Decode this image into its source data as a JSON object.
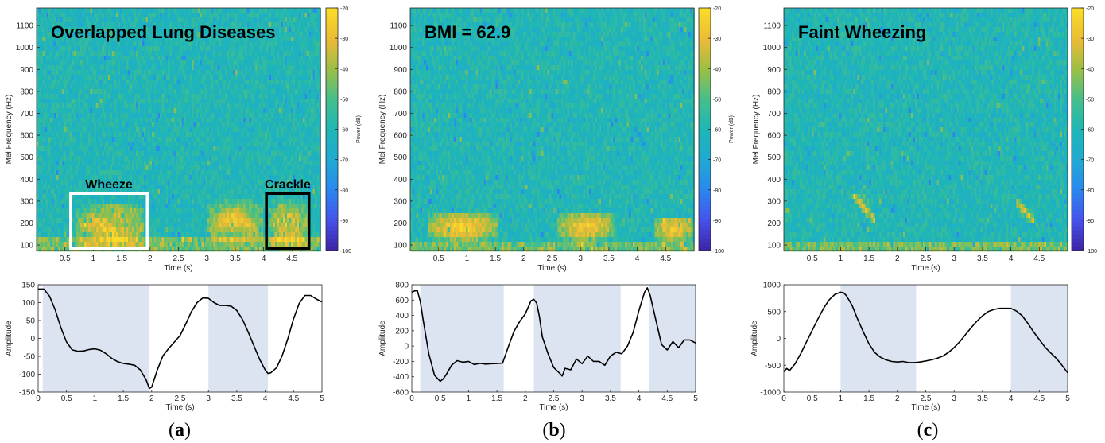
{
  "colors": {
    "shade": "#dde4f1",
    "wave": "#000000",
    "spec_low": "#3e26a8",
    "spec_mid": "#1fb5b7",
    "spec_high": "#fadc28",
    "box_wheeze": "#ffffff",
    "box_crackle": "#000000"
  },
  "colormap": "parula",
  "chart_data": [
    {
      "type": "heatmap",
      "panel": "a",
      "overlay_text": "Overlapped Lung Diseases",
      "xlabel": "Time (s)",
      "ylabel": "Mel Frequency (Hz)",
      "xlim": [
        0,
        5
      ],
      "ylim": [
        75,
        1180
      ],
      "xticks": [
        "0.5",
        "1",
        "1.5",
        "2",
        "2.5",
        "3",
        "3.5",
        "4",
        "4.5"
      ],
      "yticks": [
        "100",
        "200",
        "300",
        "400",
        "500",
        "600",
        "700",
        "800",
        "900",
        "1000",
        "1100"
      ],
      "colorbar": {
        "label": "Power (dB)",
        "range": [
          -100,
          -20
        ],
        "ticks": [
          "-20",
          "-30",
          "-40",
          "-50",
          "-60",
          "-70",
          "-80",
          "-90",
          "-100"
        ]
      },
      "baseline_band": [
        75,
        130
      ],
      "hot_regions": [
        {
          "t0": 0.7,
          "t1": 1.9,
          "f0": 90,
          "f1": 290,
          "pattern": "wheeze"
        },
        {
          "t0": 3.0,
          "t1": 4.0,
          "f0": 110,
          "f1": 300,
          "pattern": "wheeze"
        },
        {
          "t0": 4.1,
          "t1": 4.8,
          "f0": 90,
          "f1": 300,
          "pattern": "crackle"
        }
      ],
      "annotations": [
        {
          "label": "Wheeze",
          "t0": 0.6,
          "t1": 1.95,
          "f0": 85,
          "f1": 335
        },
        {
          "label": "Crackle",
          "t0": 4.05,
          "t1": 4.8,
          "f0": 85,
          "f1": 335
        }
      ]
    },
    {
      "type": "heatmap",
      "panel": "b",
      "overlay_text": "BMI = 62.9",
      "xlabel": "Time (s)",
      "ylabel": "Mel Frequency (Hz)",
      "xlim": [
        0,
        5
      ],
      "ylim": [
        75,
        1180
      ],
      "xticks": [
        "0.5",
        "1",
        "1.5",
        "2",
        "2.5",
        "3",
        "3.5",
        "4",
        "4.5"
      ],
      "yticks": [
        "100",
        "200",
        "300",
        "400",
        "500",
        "600",
        "700",
        "800",
        "900",
        "1000",
        "1100"
      ],
      "colorbar": {
        "label": "Power (dB)",
        "range": [
          -100,
          -20
        ],
        "ticks": [
          "-20",
          "-30",
          "-40",
          "-50",
          "-60",
          "-70",
          "-80",
          "-90",
          "-100"
        ]
      },
      "baseline_band": [
        75,
        110
      ],
      "hot_regions": [
        {
          "t0": 0.3,
          "t1": 1.55,
          "f0": 120,
          "f1": 250,
          "pattern": "blob"
        },
        {
          "t0": 2.6,
          "t1": 3.6,
          "f0": 120,
          "f1": 250,
          "pattern": "blob"
        },
        {
          "t0": 4.3,
          "t1": 5.0,
          "f0": 120,
          "f1": 230,
          "pattern": "blob"
        }
      ],
      "annotations": []
    },
    {
      "type": "heatmap",
      "panel": "c",
      "overlay_text": "Faint Wheezing",
      "xlabel": "Time (s)",
      "ylabel": "Mel Frequency (Hz)",
      "xlim": [
        0,
        5
      ],
      "ylim": [
        75,
        1180
      ],
      "xticks": [
        "0.5",
        "1",
        "1.5",
        "2",
        "2.5",
        "3",
        "3.5",
        "4",
        "4.5"
      ],
      "yticks": [
        "100",
        "200",
        "300",
        "400",
        "500",
        "600",
        "700",
        "800",
        "900",
        "1000",
        "1100"
      ],
      "colorbar": {
        "label": "",
        "range": [
          -100,
          -20
        ],
        "ticks": [
          "-20",
          "-30",
          "-40",
          "-50",
          "-60",
          "-70",
          "-80",
          "-90",
          "-100"
        ]
      },
      "baseline_band": [
        75,
        125
      ],
      "hot_regions": [
        {
          "t0": 1.2,
          "t1": 1.6,
          "f0": 210,
          "f1": 340,
          "pattern": "streak"
        },
        {
          "t0": 4.1,
          "t1": 4.4,
          "f0": 210,
          "f1": 300,
          "pattern": "streak"
        }
      ],
      "annotations": []
    },
    {
      "type": "line",
      "panel": "a",
      "xlabel": "Time (s)",
      "ylabel": "Amplitude",
      "xlim": [
        0,
        5
      ],
      "ylim": [
        -150,
        150
      ],
      "xticks": [
        "0",
        "0.5",
        "1",
        "1.5",
        "2",
        "2.5",
        "3",
        "3.5",
        "4",
        "4.5",
        "5"
      ],
      "yticks": [
        "150",
        "100",
        "50",
        "0",
        "-50",
        "-100",
        "-150"
      ],
      "shaded": [
        [
          0.08,
          1.95
        ],
        [
          3.0,
          4.05
        ]
      ],
      "x": [
        0,
        0.1,
        0.2,
        0.3,
        0.4,
        0.5,
        0.6,
        0.7,
        0.8,
        0.9,
        1.0,
        1.1,
        1.2,
        1.3,
        1.4,
        1.5,
        1.6,
        1.7,
        1.8,
        1.9,
        1.96,
        2.0,
        2.1,
        2.2,
        2.3,
        2.4,
        2.5,
        2.6,
        2.7,
        2.8,
        2.9,
        3.0,
        3.1,
        3.2,
        3.3,
        3.4,
        3.5,
        3.6,
        3.7,
        3.8,
        3.9,
        4.0,
        4.05,
        4.1,
        4.2,
        4.3,
        4.4,
        4.5,
        4.6,
        4.7,
        4.8,
        4.9,
        5.0
      ],
      "y": [
        138,
        138,
        118,
        80,
        30,
        -10,
        -32,
        -36,
        -35,
        -31,
        -29,
        -33,
        -43,
        -56,
        -65,
        -70,
        -72,
        -75,
        -88,
        -115,
        -140,
        -136,
        -88,
        -48,
        -28,
        -10,
        8,
        40,
        75,
        100,
        113,
        112,
        100,
        92,
        92,
        90,
        78,
        53,
        18,
        -20,
        -58,
        -88,
        -98,
        -96,
        -82,
        -48,
        0,
        55,
        98,
        120,
        120,
        110,
        102
      ]
    },
    {
      "type": "line",
      "panel": "b",
      "xlabel": "Time (s)",
      "ylabel": "Amplitude",
      "xlim": [
        0,
        5
      ],
      "ylim": [
        -600,
        800
      ],
      "xticks": [
        "0",
        "0.5",
        "1",
        "1.5",
        "2",
        "2.5",
        "3",
        "3.5",
        "4",
        "4.5",
        "5"
      ],
      "yticks": [
        "800",
        "600",
        "400",
        "200",
        "0",
        "-200",
        "-400",
        "-600"
      ],
      "shaded": [
        [
          0.15,
          1.62
        ],
        [
          2.15,
          3.68
        ],
        [
          4.18,
          5.0
        ]
      ],
      "x": [
        0,
        0.05,
        0.1,
        0.15,
        0.2,
        0.3,
        0.4,
        0.5,
        0.55,
        0.6,
        0.7,
        0.8,
        0.9,
        1.0,
        1.1,
        1.2,
        1.3,
        1.4,
        1.5,
        1.6,
        1.7,
        1.8,
        1.9,
        2.0,
        2.1,
        2.15,
        2.2,
        2.25,
        2.3,
        2.4,
        2.5,
        2.6,
        2.65,
        2.7,
        2.8,
        2.9,
        3.0,
        3.1,
        3.2,
        3.3,
        3.4,
        3.5,
        3.6,
        3.7,
        3.8,
        3.9,
        4.0,
        4.1,
        4.15,
        4.2,
        4.3,
        4.4,
        4.5,
        4.6,
        4.7,
        4.8,
        4.9,
        5.0
      ],
      "y": [
        700,
        720,
        720,
        580,
        340,
        -100,
        -380,
        -460,
        -430,
        -380,
        -250,
        -190,
        -210,
        -200,
        -240,
        -225,
        -235,
        -230,
        -228,
        -222,
        -10,
        190,
        320,
        420,
        590,
        610,
        560,
        380,
        120,
        -100,
        -280,
        -350,
        -390,
        -290,
        -310,
        -170,
        -230,
        -130,
        -200,
        -200,
        -250,
        -130,
        -80,
        -100,
        0,
        180,
        460,
        700,
        760,
        660,
        340,
        20,
        -50,
        60,
        -20,
        80,
        80,
        40
      ]
    },
    {
      "type": "line",
      "panel": "c",
      "xlabel": "Time (s)",
      "ylabel": "Amplitude",
      "xlim": [
        0,
        5
      ],
      "ylim": [
        -1000,
        1000
      ],
      "xticks": [
        "0",
        "0.5",
        "1",
        "1.5",
        "2",
        "2.5",
        "3",
        "3.5",
        "4",
        "4.5",
        "5"
      ],
      "yticks": [
        "1000",
        "500",
        "0",
        "-500",
        "-1000"
      ],
      "shaded": [
        [
          1.0,
          2.33
        ],
        [
          4.0,
          5.0
        ]
      ],
      "x": [
        0,
        0.05,
        0.1,
        0.2,
        0.3,
        0.4,
        0.5,
        0.6,
        0.7,
        0.8,
        0.9,
        1.0,
        1.05,
        1.1,
        1.2,
        1.3,
        1.4,
        1.5,
        1.6,
        1.7,
        1.8,
        1.9,
        2.0,
        2.1,
        2.2,
        2.3,
        2.4,
        2.5,
        2.6,
        2.7,
        2.8,
        2.9,
        3.0,
        3.1,
        3.2,
        3.3,
        3.4,
        3.5,
        3.6,
        3.7,
        3.8,
        3.9,
        4.0,
        4.1,
        4.2,
        4.3,
        4.4,
        4.5,
        4.6,
        4.7,
        4.8,
        4.9,
        5.0
      ],
      "y": [
        -620,
        -560,
        -600,
        -470,
        -280,
        -60,
        150,
        360,
        560,
        720,
        820,
        860,
        850,
        800,
        620,
        360,
        120,
        -100,
        -260,
        -350,
        -400,
        -430,
        -440,
        -430,
        -450,
        -450,
        -440,
        -420,
        -400,
        -370,
        -330,
        -260,
        -170,
        -60,
        70,
        200,
        320,
        420,
        500,
        540,
        560,
        560,
        560,
        510,
        420,
        280,
        120,
        -20,
        -160,
        -270,
        -370,
        -500,
        -640
      ]
    }
  ],
  "panel_labels": [
    {
      "open": "(",
      "letter": "a",
      "close": ")"
    },
    {
      "open": "(",
      "letter": "b",
      "close": ")"
    },
    {
      "open": "(",
      "letter": "c",
      "close": ")"
    }
  ]
}
